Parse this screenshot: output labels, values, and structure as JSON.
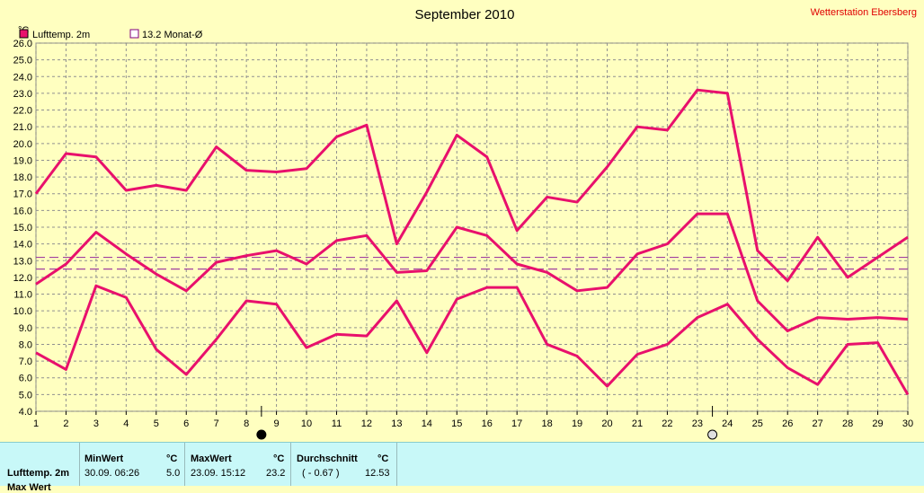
{
  "chart_data": {
    "type": "line",
    "title": "September 2010",
    "station": "Wetterstation Ebersberg",
    "ylabel": "°C",
    "ylim": [
      4.0,
      26.0
    ],
    "ytick_step": 1.0,
    "x": [
      1,
      2,
      3,
      4,
      5,
      6,
      7,
      8,
      9,
      10,
      11,
      12,
      13,
      14,
      15,
      16,
      17,
      18,
      19,
      20,
      21,
      22,
      23,
      24,
      25,
      26,
      27,
      28,
      29,
      30
    ],
    "legend": [
      {
        "name": "Lufttemp. 2m",
        "color": "#e8106c",
        "filled": true
      },
      {
        "name": "13.2 Monat-Ø",
        "color": "#800080",
        "filled": false
      }
    ],
    "series": [
      {
        "name": "max",
        "color": "#e8106c",
        "values": [
          17.0,
          19.4,
          19.2,
          17.2,
          17.5,
          17.2,
          19.8,
          18.4,
          18.3,
          18.5,
          20.4,
          21.1,
          14.0,
          17.1,
          20.5,
          19.2,
          14.8,
          16.8,
          16.5,
          18.6,
          21.0,
          20.8,
          23.2,
          23.0,
          13.6,
          11.8,
          14.4,
          12.0,
          13.2,
          14.4
        ]
      },
      {
        "name": "mean",
        "color": "#e8106c",
        "values": [
          11.6,
          12.8,
          14.7,
          13.4,
          12.2,
          11.2,
          12.9,
          13.3,
          13.6,
          12.8,
          14.2,
          14.5,
          12.3,
          12.4,
          15.0,
          14.5,
          12.8,
          12.3,
          11.2,
          11.4,
          13.4,
          14.0,
          15.8,
          15.8,
          10.6,
          8.8,
          9.6,
          9.5,
          9.6,
          9.5
        ]
      },
      {
        "name": "min",
        "color": "#e8106c",
        "values": [
          7.5,
          6.5,
          11.5,
          10.8,
          7.7,
          6.2,
          8.3,
          10.6,
          10.4,
          7.8,
          8.6,
          8.5,
          10.6,
          7.5,
          10.7,
          11.4,
          11.4,
          8.0,
          7.3,
          5.5,
          7.4,
          8.0,
          9.6,
          10.4,
          8.3,
          6.6,
          5.6,
          8.0,
          8.1,
          5.0
        ]
      }
    ],
    "reference_lines": [
      {
        "name": "Monat-Ø",
        "value": 13.2,
        "color": "#a040a0"
      },
      {
        "name": "ref",
        "value": 12.5,
        "color": "#a040a0"
      }
    ],
    "moon_markers": [
      {
        "x": 8.5,
        "phase": "new"
      },
      {
        "x": 23.5,
        "phase": "full"
      }
    ]
  },
  "stats": {
    "row_label": "Lufttemp. 2m",
    "row_label2": "Max Wert",
    "min": {
      "header": "MinWert",
      "unit": "°C",
      "datetime": "30.09.  06:26",
      "value": "5.0"
    },
    "max": {
      "header": "MaxWert",
      "unit": "°C",
      "datetime": "23.09.  15:12",
      "value": "23.2"
    },
    "avg": {
      "header": "Durchschnitt",
      "unit": "°C",
      "extra": "( - 0.67 )",
      "value": "12.53"
    }
  }
}
